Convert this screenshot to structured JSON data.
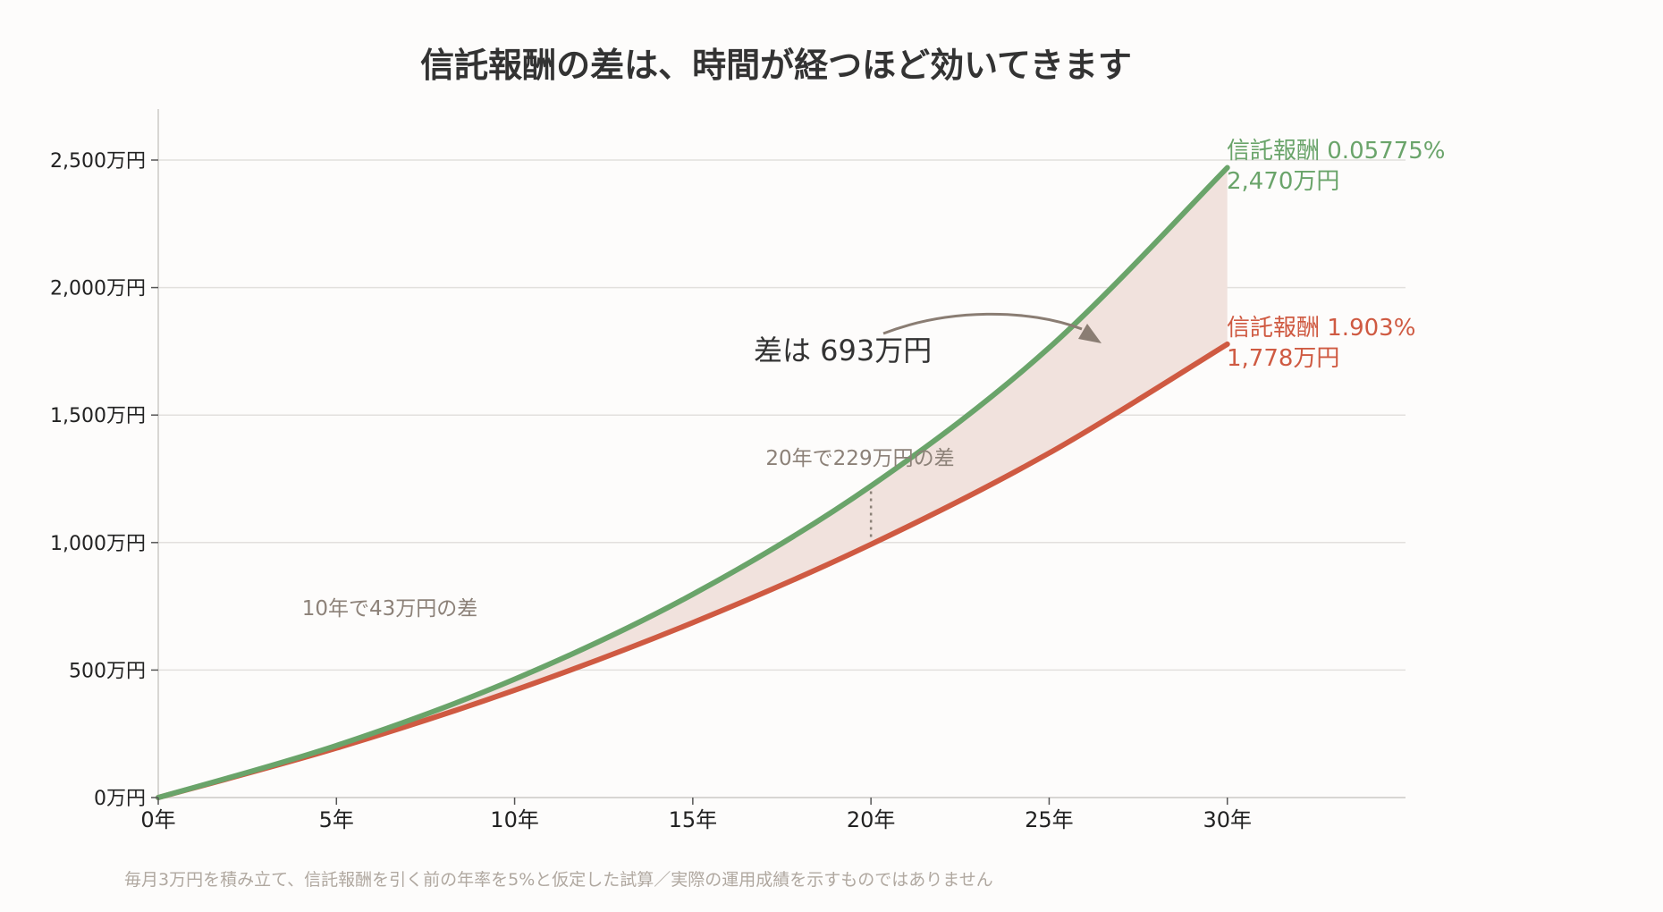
{
  "title": "信託報酬の差は、時間が経つほど効いてきます",
  "footnote": "毎月3万円を積み立て、信託報酬を引く前の年率を5%と仮定した試算／実際の運用成績を示すものではありません",
  "colors": {
    "low_fee": "#6aa46a",
    "high_fee": "#cf5a42",
    "gap_fill": "#f1e2dd",
    "annotation": "#8c8178",
    "arrow": "#8a7d73"
  },
  "annotations": {
    "gap_total": "差は 693万円",
    "gap_20y": "20年で229万円の差",
    "gap_10y": "10年で43万円の差"
  },
  "chart_data": {
    "type": "line",
    "title": "信託報酬の差は、時間が経つほど効いてきます",
    "xlabel": "",
    "ylabel": "",
    "x": [
      0,
      5,
      10,
      15,
      20,
      25,
      30
    ],
    "x_tick_labels": [
      "0年",
      "5年",
      "10年",
      "15年",
      "20年",
      "25年",
      "30年"
    ],
    "xlim": [
      0,
      35
    ],
    "ylim": [
      0,
      2500
    ],
    "y_ticks": [
      0,
      500,
      1000,
      1500,
      2000,
      2500
    ],
    "y_tick_labels": [
      "0万円",
      "500万円",
      "1,000万円",
      "1,500万円",
      "2,000万円",
      "2,500万円"
    ],
    "grid": true,
    "series": [
      {
        "name": "信託報酬 0.05775%",
        "end_label": "2,470万円",
        "values": [
          0,
          204,
          464,
          797,
          1222,
          1764,
          2470
        ]
      },
      {
        "name": "信託報酬 1.903%",
        "end_label": "1,778万円",
        "values": [
          0,
          194,
          421,
          686,
          993,
          1351,
          1778
        ]
      }
    ]
  }
}
